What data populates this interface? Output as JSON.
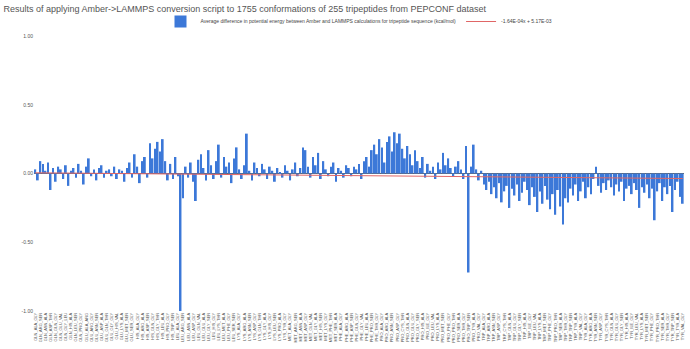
{
  "chart_data": {
    "type": "bar",
    "title": "Results of applying Amber->LAMMPS conversion script to 1755 conformations of 255 tripeptides from PEPCONF dataset",
    "categories": [
      "GLN_ALA_GLY",
      null,
      "GLN_ARG_SER",
      null,
      "GLN_ASN_ALA",
      null,
      "GLN_ASP_THR",
      null,
      "GLN_GLN_GLY",
      null,
      "GLN_GLU_VAL",
      null,
      "GLN_GLY_LEU",
      null,
      "GLN_HIS_ALA",
      null,
      "GLN_LEU_SER",
      null,
      "GLN_PRO_GLY",
      null,
      "GLU_ALA_ARG",
      null,
      "GLU_ARG_GLY",
      null,
      "GLU_ASN_SER",
      null,
      "GLU_ASP_ALA",
      null,
      "GLU_GLN_THR",
      null,
      "GLU_GLY_GLY",
      null,
      "GLU_HIS_VAL",
      null,
      "GLU_LYS_ALA",
      null,
      "GLU_MET_SER",
      null,
      "GLU_SER_GLY",
      null,
      "HIS_ALA_GLY",
      null,
      "HIS_ARG_ALA",
      null,
      "HIS_ASP_SER",
      null,
      "HIS_GLN_GLY",
      null,
      "HIS_GLY_THR",
      null,
      "HIS_LEU_ALA",
      null,
      "HIS_PRO_GLY",
      null,
      "HIS_TRP_SER",
      null,
      "LEU_ALA_GLY",
      null,
      "LEU_ARG_SER",
      null,
      "LEU_ASN_ALA",
      null,
      "LEU_ASP_GLY",
      null,
      "LEU_GLN_VAL",
      null,
      "LEU_GLU_ALA",
      null,
      "LEU_GLY_SER",
      null,
      "LEU_HIS_GLY",
      null,
      "LEU_LYS_THR",
      null,
      "LEU_MET_ALA",
      null,
      "LEU_PHE_GLY",
      null,
      "LEU_SER_SER",
      null,
      "LYS_ALA_GLY",
      null,
      "LYS_ARG_ALA",
      null,
      "LYS_ASN_SER",
      null,
      "LYS_ASP_GLY",
      null,
      "LYS_GLN_THR",
      null,
      "LYS_GLY_ALA",
      null,
      "LYS_HIS_GLY",
      null,
      "LYS_LEU_SER",
      null,
      "LYS_PRO_ALA",
      null,
      "LYS_TYR_GLY",
      null,
      "MET_ALA_GLY",
      null,
      "MET_ARG_SER",
      null,
      "MET_ASN_ALA",
      null,
      "MET_ASP_GLY",
      null,
      "MET_GLN_VAL",
      null,
      "MET_GLY_ALA",
      null,
      "MET_HIS_SER",
      null,
      "MET_LYS_GLY",
      null,
      "MET_PHE_THR",
      null,
      "MET_SER_ALA",
      null,
      "PHE_ALA_GLY",
      null,
      "PHE_ARG_ALA",
      null,
      "PHE_ASP_SER",
      null,
      "PHE_GLN_GLY",
      null,
      "PHE_GLY_VAL",
      null,
      "PHE_LEU_ALA",
      null,
      "PHE_PRO_SER",
      null,
      "PHE_THR_GLY",
      null,
      "PRO_ALA_GLY",
      null,
      "PRO_ARG_ALA",
      null,
      "PRO_ASN_SER",
      null,
      "PRO_ASP_GLY",
      null,
      "PRO_CYS_THR",
      null,
      "PRO_GLN_ALA",
      null,
      "PRO_GLU_GLY",
      null,
      "PRO_GLY_SER",
      null,
      "PRO_HIS_ALA",
      null,
      "PRO_ILE_GLY",
      null,
      "PRO_LEU_VAL",
      null,
      "PRO_LYS_ALA",
      null,
      "PRO_MET_SER",
      null,
      "PRO_PHE_GLY",
      null,
      "PRO_PRO_THR",
      null,
      "PRO_SER_ALA",
      null,
      "PRO_THR_GLY",
      null,
      "PRO_TRP_SER",
      null,
      "PRO_TYR_ALA",
      null,
      "PRO_VAL_GLY",
      null,
      "TRP_ALA_GLY",
      null,
      "TRP_ARG_ALA",
      null,
      "TRP_ASN_SER",
      null,
      "TRP_ASP_GLY",
      null,
      "TRP_CYS_THR",
      null,
      "TRP_GLN_ALA",
      null,
      "TRP_GLU_GLY",
      null,
      "TRP_GLY_SER",
      null,
      "TRP_HIS_ALA",
      null,
      "TRP_ILE_GLY",
      null,
      "TRP_LEU_VAL",
      null,
      "TRP_LYS_ALA",
      null,
      "TRP_MET_SER",
      null,
      "TRP_PHE_GLY",
      null,
      "TRP_PRO_THR",
      null,
      "TRP_SER_ALA",
      null,
      "TRP_THR_GLY",
      null,
      "TRP_TRP_SER",
      null,
      "TRP_TYR_ALA",
      null,
      "TRP_VAL_GLY",
      null,
      "TYR_ALA_GLY",
      null,
      "TYR_ARG_ALA",
      null,
      "TYR_ASN_SER",
      null,
      "TYR_ASP_GLY",
      null,
      "TYR_CYS_THR",
      null,
      "TYR_GLN_ALA",
      null,
      "TYR_GLU_GLY",
      null,
      "TYR_GLY_SER",
      null,
      "TYR_HIS_ALA",
      null,
      "TYR_ILE_GLY",
      null,
      "TYR_LEU_VAL",
      null,
      "TYR_LYS_ALA",
      null,
      "TYR_MET_SER",
      null,
      "TYR_PHE_GLY",
      null,
      "TYR_PRO_THR",
      null,
      "TYR_SER_ALA",
      null,
      "TYR_THR_GLY",
      null,
      "TYR_TRP_SER",
      null,
      "TYR_TYR_ALA",
      null,
      "TYR_VAL_GLY"
    ],
    "series": [
      {
        "name": "Average difference in potential energy between Amber and LAMMPS calculations for tripeptide sequence (kcal/mol)",
        "color": "#3c78d8",
        "values": [
          0.03,
          -0.05,
          0.09,
          0.07,
          0.02,
          0.08,
          -0.12,
          0.04,
          -0.06,
          0.05,
          0.03,
          -0.04,
          0.06,
          -0.09,
          0.02,
          0.04,
          -0.03,
          0.07,
          0.02,
          -0.08,
          0.05,
          0.11,
          -0.02,
          0.03,
          -0.05,
          0.04,
          0.06,
          -0.03,
          0.02,
          0.03,
          -0.02,
          0.05,
          -0.04,
          0.03,
          0.02,
          -0.06,
          0.04,
          0.08,
          -0.03,
          0.14,
          0.05,
          -0.07,
          0.09,
          0.12,
          -0.03,
          0.22,
          0.11,
          0.18,
          0.23,
          0.16,
          0.25,
          0.09,
          -0.05,
          0.07,
          -0.04,
          0.12,
          -0.02,
          -1.0,
          -0.18,
          0.05,
          -0.03,
          0.08,
          -0.06,
          -0.2,
          0.1,
          0.14,
          0.04,
          -0.05,
          0.17,
          0.06,
          -0.04,
          0.09,
          0.21,
          -0.03,
          0.12,
          0.05,
          0.08,
          -0.07,
          0.11,
          0.19,
          0.03,
          -0.04,
          0.06,
          0.29,
          0.02,
          -0.05,
          0.08,
          0.04,
          -0.02,
          0.07,
          0.03,
          -0.04,
          0.05,
          0.02,
          -0.06,
          0.04,
          0.01,
          -0.03,
          0.06,
          0.02,
          -0.05,
          0.03,
          0.08,
          -0.02,
          0.04,
          0.19,
          0.17,
          0.05,
          -0.03,
          0.12,
          0.06,
          0.15,
          -0.04,
          0.09,
          0.03,
          -0.02,
          0.05,
          0.08,
          -0.06,
          0.04,
          0.02,
          -0.03,
          0.06,
          0.04,
          -0.02,
          0.05,
          0.03,
          0.07,
          -0.04,
          0.09,
          0.12,
          0.05,
          0.17,
          0.21,
          0.14,
          0.25,
          0.19,
          0.08,
          0.23,
          0.27,
          0.16,
          0.3,
          0.22,
          0.29,
          0.18,
          0.11,
          0.2,
          0.14,
          0.06,
          0.17,
          0.09,
          0.04,
          0.12,
          -0.03,
          0.07,
          0.02,
          0.05,
          -0.04,
          0.08,
          0.03,
          0.15,
          0.06,
          0.11,
          0.04,
          -0.02,
          0.05,
          0.09,
          0.03,
          -0.04,
          0.2,
          -0.72,
          0.05,
          0.21,
          0.03,
          -0.05,
          0.02,
          -0.08,
          -0.12,
          -0.06,
          -0.15,
          -0.1,
          -0.18,
          -0.07,
          -0.21,
          -0.13,
          -0.09,
          -0.25,
          -0.11,
          -0.16,
          -0.08,
          -0.2,
          -0.14,
          -0.06,
          -0.12,
          -0.23,
          -0.1,
          -0.17,
          -0.28,
          -0.13,
          -0.22,
          -0.09,
          -0.19,
          -0.26,
          -0.15,
          -0.3,
          -0.12,
          -0.24,
          -0.37,
          -0.18,
          -0.21,
          -0.11,
          -0.16,
          -0.08,
          -0.2,
          -0.13,
          -0.06,
          -0.18,
          -0.1,
          -0.15,
          -0.04,
          0.05,
          -0.09,
          -0.14,
          -0.07,
          -0.12,
          -0.05,
          -0.1,
          -0.16,
          -0.08,
          -0.13,
          -0.06,
          -0.2,
          -0.11,
          -0.09,
          -0.15,
          -0.07,
          -0.12,
          -0.25,
          -0.1,
          -0.14,
          -0.08,
          -0.18,
          -0.11,
          -0.34,
          -0.13,
          -0.07,
          -0.2,
          -0.1,
          -0.15,
          -0.09,
          -0.28,
          -0.12,
          -0.06,
          -0.17,
          -0.22
        ]
      },
      {
        "name": "-1.64E-04x + 5.17E-03",
        "type": "line",
        "color": "#e06666",
        "x": [
          0,
          254
        ],
        "values": [
          0.005,
          -0.0366
        ]
      }
    ],
    "ylim": [
      -1,
      1
    ],
    "yticks": [
      {
        "value": -1,
        "label": "-1.00"
      },
      {
        "value": -0.5,
        "label": "-0.50"
      },
      {
        "value": 0,
        "label": "0.00"
      },
      {
        "value": 0.5,
        "label": "0.50"
      },
      {
        "value": 1,
        "label": "1.00"
      }
    ],
    "grid": false,
    "legend": "top"
  }
}
